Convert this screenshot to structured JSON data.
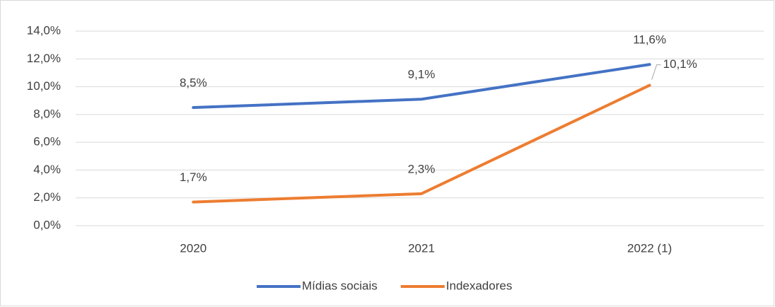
{
  "chart_data": {
    "type": "line",
    "categories": [
      "2020",
      "2021",
      "2022 (1)"
    ],
    "series": [
      {
        "name": "Mídias sociais",
        "color": "#4472c4",
        "values": [
          8.5,
          9.1,
          11.6
        ],
        "value_labels": [
          "8,5%",
          "9,1%",
          "11,6%"
        ]
      },
      {
        "name": "Indexadores",
        "color": "#ed7d31",
        "values": [
          1.7,
          2.3,
          10.1
        ],
        "value_labels": [
          "1,7%",
          "2,3%",
          "10,1%"
        ]
      }
    ],
    "ylim": [
      0,
      14
    ],
    "yticks": [
      {
        "value": 0,
        "label": "0,0%"
      },
      {
        "value": 2,
        "label": "2,0%"
      },
      {
        "value": 4,
        "label": "4,0%"
      },
      {
        "value": 6,
        "label": "6,0%"
      },
      {
        "value": 8,
        "label": "8,0%"
      },
      {
        "value": 10,
        "label": "10,0%"
      },
      {
        "value": 12,
        "label": "12,0%"
      },
      {
        "value": 14,
        "label": "14,0%"
      }
    ],
    "grid": true,
    "legend": "bottom"
  }
}
